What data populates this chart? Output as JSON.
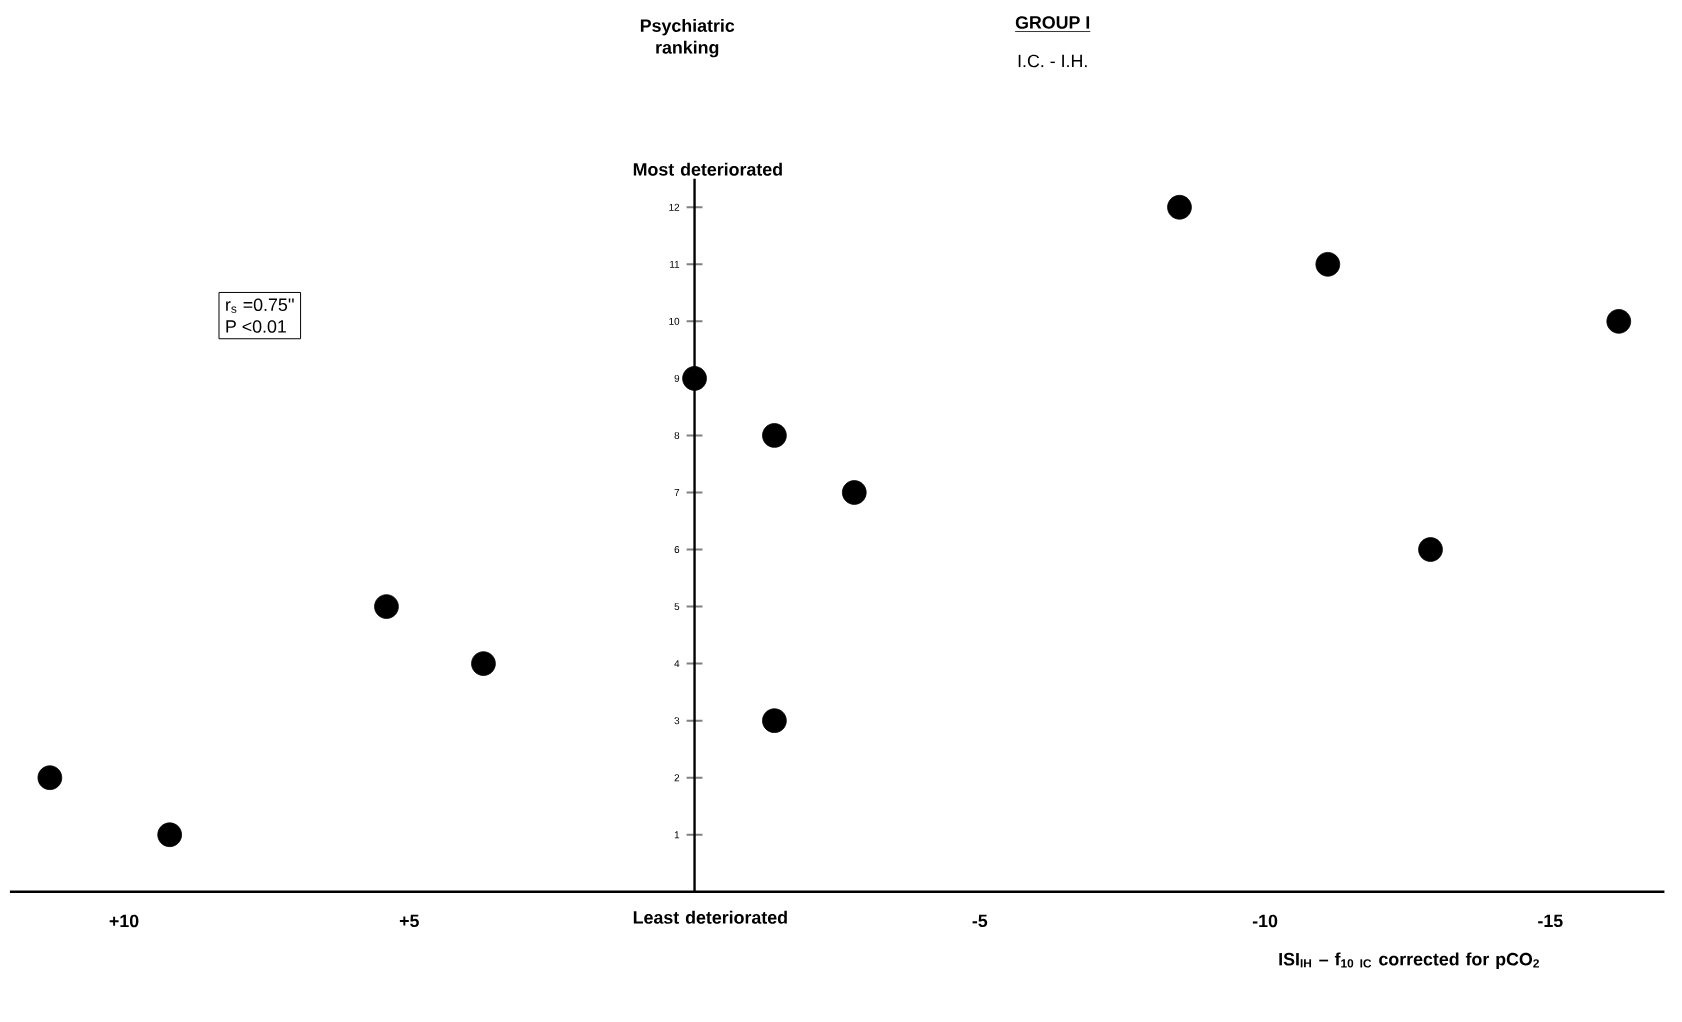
{
  "chart_data": {
    "type": "scatter",
    "title": "GROUP I",
    "subtitle": "I.C. - I.H.",
    "xlabel": "ISI$_{IH}$ – f$_{10 IC}$ corrected for pCO$_{2}$",
    "annotations": [
      "Psychiatric ranking",
      "Most deteriorated",
      "Least deteriorated",
      "r$_{s}$ =0.75''",
      "P <0.01"
    ],
    "x": [
      11.3,
      9.2,
      5.4,
      3.7,
      0,
      -1.4,
      -1.4,
      -2.8,
      -8.5,
      -11.1,
      -12.9,
      -16.2
    ],
    "values": [
      2,
      1,
      5,
      4,
      9,
      8,
      3,
      7,
      12,
      11,
      6,
      10
    ],
    "color": "#000000",
    "marker": "circle",
    "grid": false,
    "xlim": [
      12,
      -17
    ],
    "ylim": [
      0,
      12.5
    ],
    "xticks": [
      {
        "value": 10,
        "label": "+10"
      },
      {
        "value": 5,
        "label": "+5"
      },
      -5,
      -10,
      -15
    ],
    "yticks": [
      1,
      2,
      3,
      4,
      5,
      6,
      7,
      8,
      9,
      10,
      11,
      12
    ]
  }
}
